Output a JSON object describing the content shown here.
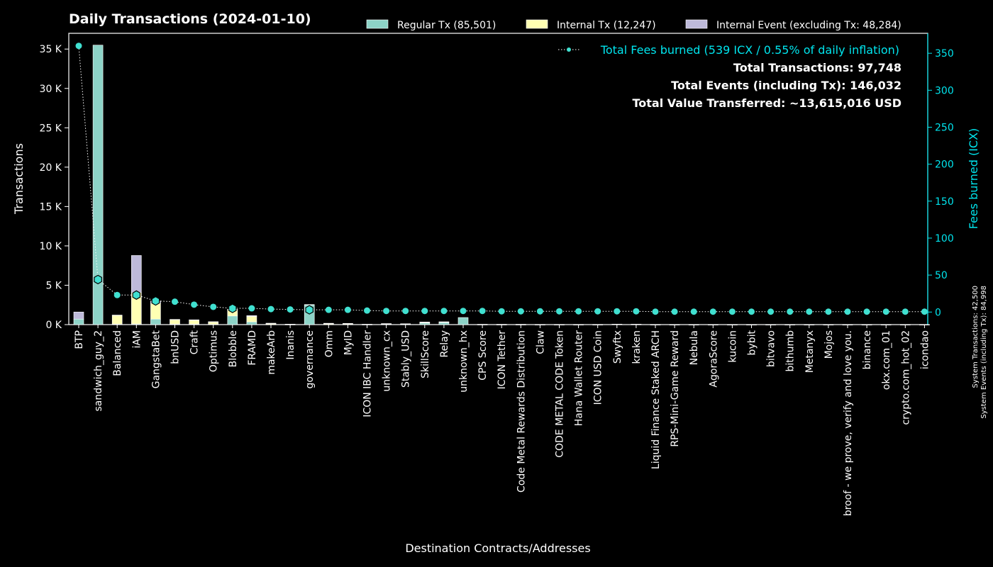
{
  "chart_data": {
    "type": "bar",
    "title": "Daily Transactions (2024-01-10)",
    "xlabel": "Destination Contracts/Addresses",
    "ylabel": "Transactions",
    "ylabel_right": "Fees burned (ICX)",
    "ylim": [
      0,
      37000
    ],
    "ylim_right": [
      -17,
      377
    ],
    "yticks": [
      0,
      5000,
      10000,
      15000,
      20000,
      25000,
      30000,
      35000
    ],
    "ytick_labels": [
      "0 K",
      "5 K",
      "10 K",
      "15 K",
      "20 K",
      "25 K",
      "30 K",
      "35 K"
    ],
    "yticks_right": [
      0,
      50,
      100,
      150,
      200,
      250,
      300,
      350
    ],
    "ytick_right_labels": [
      "0",
      "50",
      "100",
      "150",
      "200",
      "250",
      "300",
      "350"
    ],
    "categories": [
      "BTP",
      "sandwich_guy_2",
      "Balanced",
      "iAM",
      "GangstaBet",
      "bnUSD",
      "Craft",
      "Optimus",
      "Blobble",
      "FRAMD",
      "makeArb",
      "Inanis",
      "governance",
      "Omm",
      "MyID",
      "ICON IBC Handler",
      "unknown_cx",
      "Stably_USD",
      "SkillScore",
      "Relay",
      "unknown_hx",
      "CPS Score",
      "ICON Tether",
      "Code Metal Rewards Distribution",
      "Claw",
      "CODE METAL CODE Token",
      "Hana Wallet Router",
      "ICON USD Coin",
      "Swyftx",
      "kraken",
      "Liquid Finance Staked ARCH",
      "RPS-Mini-Game Reward",
      "Nebula",
      "AgoraScore",
      "kucoin",
      "bybit",
      "bitvavo",
      "bithumb",
      "Metanyx",
      "Mojos",
      "broof - we prove, verify and love you.",
      "binance",
      "okx.com_01",
      "crypto.com_hot_02",
      "icondao"
    ],
    "series": [
      {
        "name": "Regular Tx (85,501)",
        "color": "#8dd3c7",
        "values": [
          700,
          35500,
          60,
          80,
          700,
          60,
          60,
          40,
          1100,
          350,
          30,
          20,
          2500,
          40,
          40,
          15,
          60,
          80,
          200,
          250,
          900,
          15,
          10,
          10,
          8,
          8,
          8,
          8,
          40,
          30,
          8,
          5,
          5,
          5,
          5,
          5,
          5,
          5,
          5,
          5,
          5,
          5,
          5,
          5,
          5
        ]
      },
      {
        "name": "Internal Tx (12,247)",
        "color": "#ffffb3",
        "values": [
          0,
          0,
          1100,
          4000,
          2000,
          550,
          500,
          300,
          800,
          700,
          100,
          30,
          0,
          100,
          80,
          20,
          40,
          20,
          100,
          80,
          0,
          15,
          15,
          15,
          10,
          10,
          10,
          10,
          10,
          10,
          8,
          5,
          5,
          5,
          5,
          5,
          5,
          5,
          5,
          5,
          5,
          5,
          5,
          5,
          5
        ]
      },
      {
        "name": "Internal Event (excluding Tx: 48,284)",
        "color": "#bebada",
        "values": [
          900,
          0,
          50,
          4700,
          300,
          50,
          50,
          30,
          50,
          100,
          50,
          10,
          50,
          30,
          30,
          10,
          30,
          10,
          30,
          30,
          0,
          5,
          10,
          10,
          5,
          5,
          5,
          5,
          5,
          5,
          5,
          3,
          3,
          3,
          3,
          3,
          3,
          3,
          3,
          3,
          3,
          3,
          3,
          3,
          3
        ]
      }
    ],
    "fees_series": {
      "name": "Total Fees burned (539 ICX / 0.55% of daily inflation)",
      "color": "#40e0d0",
      "values": [
        360,
        44,
        23,
        23,
        15,
        14,
        10,
        7,
        5,
        5,
        4,
        3.5,
        3,
        3,
        3,
        2,
        1.5,
        1.5,
        1.5,
        1.5,
        1.5,
        1.5,
        1,
        1,
        1,
        1,
        1,
        1,
        1,
        1,
        0.5,
        0.5,
        0.5,
        0.5,
        0.5,
        0.5,
        0.5,
        0.5,
        0.5,
        0.5,
        0.5,
        0.5,
        0.5,
        0.5,
        0.5
      ],
      "highlighted_indices": [
        1,
        3,
        4,
        8,
        12
      ]
    },
    "summary": [
      "Total Transactions: 97,748",
      "Total Events (including Tx): 146,032",
      "Total Value Transferred: ~13,615,016 USD"
    ],
    "side_notes": [
      "System Transactions: 42,500",
      "System Events (including Tx): 84,998"
    ],
    "grid": false,
    "legend_position": "top-right"
  }
}
